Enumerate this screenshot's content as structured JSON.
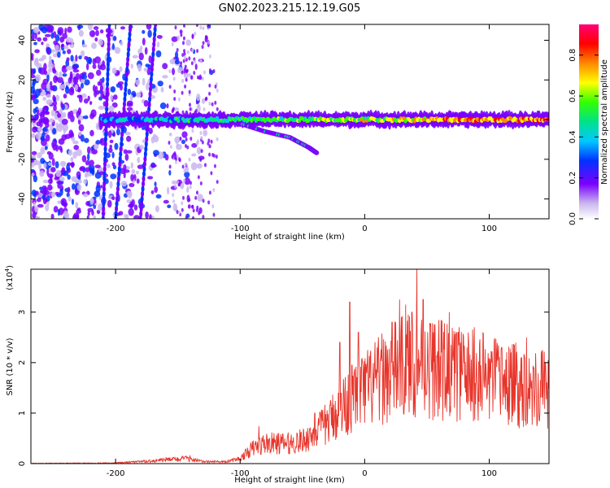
{
  "title": "GN02.2023.215.12.19.G05",
  "chart_data": [
    {
      "type": "heatmap",
      "xlabel": "Height of straight line (km)",
      "ylabel": "Frequency (Hz)",
      "xlim": [
        -268,
        148
      ],
      "ylim": [
        -50,
        48
      ],
      "xticks": [
        -200,
        -100,
        0,
        100
      ],
      "yticks": [
        -40,
        -20,
        0,
        20,
        40
      ],
      "colorbar": {
        "label": "Normalized spectral amplitude",
        "range": [
          0,
          0.95
        ],
        "ticks": [
          0.0,
          0.2,
          0.4,
          0.6,
          0.8
        ],
        "colors": [
          "#ffffff",
          "#c9b6ee",
          "#7a00ff",
          "#0033ff",
          "#00c8ff",
          "#00e28a",
          "#33ff00",
          "#ffff00",
          "#ff8800",
          "#ff0000",
          "#ff0077"
        ]
      },
      "features": {
        "ridge": {
          "x_start": -212,
          "x_end": 148,
          "frequency": 0,
          "amplitude": 0.8
        },
        "descending_branch": {
          "points": [
            [
              -100,
              -2
            ],
            [
              -80,
              -6
            ],
            [
              -60,
              -9
            ],
            [
              -45,
              -14
            ],
            [
              -38,
              -17
            ]
          ]
        },
        "streaks": [
          {
            "x": [
              -210,
              -205
            ],
            "y": [
              -50,
              48
            ]
          },
          {
            "x": [
              -200,
              -188
            ],
            "y": [
              -50,
              48
            ]
          },
          {
            "x": [
              -180,
              -168
            ],
            "y": [
              -50,
              48
            ]
          }
        ],
        "noise_region": {
          "x": [
            -268,
            -120
          ],
          "y": [
            -50,
            48
          ]
        }
      }
    },
    {
      "type": "line",
      "xlabel": "Height of straight line (km)",
      "ylabel": "SNR (10 * v/v)",
      "yscale_label": "(x10",
      "yscale_exponent": "4",
      "xlim": [
        -268,
        148
      ],
      "ylim": [
        0,
        3.85
      ],
      "xticks": [
        -200,
        -100,
        0,
        100
      ],
      "yticks": [
        0,
        1,
        2,
        3
      ],
      "color": "#e8352b",
      "envelope": [
        [
          -268,
          0.01
        ],
        [
          -200,
          0.02
        ],
        [
          -180,
          0.05
        ],
        [
          -150,
          0.12
        ],
        [
          -140,
          0.13
        ],
        [
          -130,
          0.05
        ],
        [
          -110,
          0.05
        ],
        [
          -100,
          0.1
        ],
        [
          -90,
          0.3
        ],
        [
          -80,
          0.4
        ],
        [
          -70,
          0.4
        ],
        [
          -60,
          0.4
        ],
        [
          -50,
          0.45
        ],
        [
          -40,
          0.6
        ],
        [
          -30,
          0.8
        ],
        [
          -20,
          1.1
        ],
        [
          -10,
          1.3
        ],
        [
          0,
          1.45
        ],
        [
          10,
          1.6
        ],
        [
          20,
          1.8
        ],
        [
          30,
          1.9
        ],
        [
          40,
          2.0
        ],
        [
          50,
          1.95
        ],
        [
          60,
          1.85
        ],
        [
          70,
          1.8
        ],
        [
          80,
          1.75
        ],
        [
          90,
          1.7
        ],
        [
          100,
          1.65
        ],
        [
          110,
          1.6
        ],
        [
          120,
          1.55
        ],
        [
          130,
          1.55
        ],
        [
          140,
          1.5
        ],
        [
          148,
          1.5
        ]
      ],
      "peaks": [
        [
          -85,
          0.74
        ],
        [
          -40,
          1.0
        ],
        [
          -28,
          1.15
        ],
        [
          -20,
          2.4
        ],
        [
          -12,
          3.2
        ],
        [
          -5,
          2.6
        ],
        [
          10,
          2.3
        ],
        [
          22,
          2.8
        ],
        [
          28,
          3.25
        ],
        [
          33,
          3.15
        ],
        [
          38,
          3.0
        ],
        [
          42,
          3.85
        ],
        [
          47,
          3.25
        ],
        [
          55,
          2.6
        ],
        [
          68,
          3.0
        ],
        [
          75,
          2.6
        ],
        [
          88,
          2.7
        ],
        [
          95,
          2.6
        ],
        [
          110,
          2.3
        ],
        [
          130,
          2.5
        ],
        [
          145,
          2.0
        ]
      ]
    }
  ]
}
